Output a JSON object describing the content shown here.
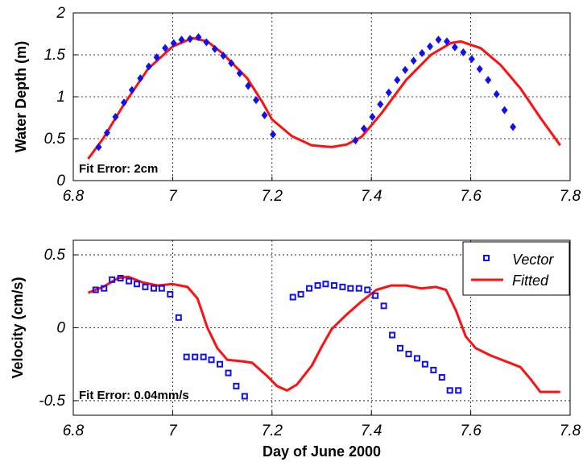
{
  "colors": {
    "marker": "#1010ee",
    "fit": "#ff1010"
  },
  "chart_data": [
    {
      "type": "scatter",
      "ylabel": "Water Depth (m)",
      "xlim": [
        6.8,
        7.8
      ],
      "ylim": [
        0,
        2
      ],
      "xticks": [
        "6.8",
        "7",
        "7.2",
        "7.4",
        "7.6",
        "7.8"
      ],
      "yticks": [
        "0",
        "0.5",
        "1",
        "1.5",
        "2"
      ],
      "grid": true,
      "annotation": "Fit Error: 2cm",
      "series": [
        {
          "marker": "diamond",
          "color": "#1010ee",
          "points": [
            [
              6.851,
              0.4
            ],
            [
              6.868,
              0.57
            ],
            [
              6.885,
              0.76
            ],
            [
              6.902,
              0.93
            ],
            [
              6.918,
              1.08
            ],
            [
              6.935,
              1.22
            ],
            [
              6.952,
              1.36
            ],
            [
              6.968,
              1.47
            ],
            [
              6.985,
              1.58
            ],
            [
              7.002,
              1.64
            ],
            [
              7.018,
              1.68
            ],
            [
              7.035,
              1.69
            ],
            [
              7.052,
              1.71
            ],
            [
              7.068,
              1.65
            ],
            [
              7.085,
              1.57
            ],
            [
              7.102,
              1.49
            ],
            [
              7.118,
              1.4
            ],
            [
              7.135,
              1.28
            ],
            [
              7.152,
              1.13
            ],
            [
              7.168,
              0.96
            ],
            [
              7.185,
              0.78
            ],
            [
              7.202,
              0.55
            ],
            [
              7.368,
              0.48
            ],
            [
              7.385,
              0.62
            ],
            [
              7.402,
              0.76
            ],
            [
              7.418,
              0.91
            ],
            [
              7.435,
              1.05
            ],
            [
              7.452,
              1.2
            ],
            [
              7.468,
              1.32
            ],
            [
              7.485,
              1.43
            ],
            [
              7.502,
              1.52
            ],
            [
              7.518,
              1.6
            ],
            [
              7.535,
              1.68
            ],
            [
              7.552,
              1.66
            ],
            [
              7.568,
              1.59
            ],
            [
              7.585,
              1.53
            ],
            [
              7.602,
              1.45
            ],
            [
              7.618,
              1.33
            ],
            [
              7.635,
              1.2
            ],
            [
              7.652,
              1.03
            ],
            [
              7.668,
              0.84
            ],
            [
              7.685,
              0.64
            ]
          ]
        },
        {
          "color": "#ff1010",
          "points": [
            [
              6.83,
              0.26
            ],
            [
              6.86,
              0.5
            ],
            [
              6.9,
              0.89
            ],
            [
              6.95,
              1.33
            ],
            [
              7.0,
              1.6
            ],
            [
              7.04,
              1.7
            ],
            [
              7.07,
              1.66
            ],
            [
              7.1,
              1.52
            ],
            [
              7.15,
              1.22
            ],
            [
              7.18,
              0.94
            ],
            [
              7.2,
              0.73
            ],
            [
              7.24,
              0.53
            ],
            [
              7.28,
              0.42
            ],
            [
              7.32,
              0.4
            ],
            [
              7.35,
              0.43
            ],
            [
              7.38,
              0.52
            ],
            [
              7.42,
              0.8
            ],
            [
              7.47,
              1.2
            ],
            [
              7.52,
              1.5
            ],
            [
              7.56,
              1.64
            ],
            [
              7.58,
              1.66
            ],
            [
              7.62,
              1.58
            ],
            [
              7.66,
              1.38
            ],
            [
              7.7,
              1.1
            ],
            [
              7.74,
              0.75
            ],
            [
              7.78,
              0.42
            ]
          ]
        }
      ]
    },
    {
      "type": "scatter",
      "ylabel": "Velocity (cm/s)",
      "xlabel": "Day of June 2000",
      "xlim": [
        6.8,
        7.8
      ],
      "ylim": [
        -0.6,
        0.6
      ],
      "xticks": [
        "6.8",
        "7",
        "7.2",
        "7.4",
        "7.6",
        "7.8"
      ],
      "yticks": [
        "-0.5",
        "0",
        "0.5"
      ],
      "grid": true,
      "annotation": "Fit Error: 0.04mm/s",
      "legend_position": "top-right",
      "series": [
        {
          "name": "Vector",
          "marker": "square",
          "color": "#1010ee",
          "points": [
            [
              6.845,
              0.26
            ],
            [
              6.862,
              0.27
            ],
            [
              6.878,
              0.33
            ],
            [
              6.895,
              0.34
            ],
            [
              6.912,
              0.32
            ],
            [
              6.928,
              0.3
            ],
            [
              6.945,
              0.28
            ],
            [
              6.962,
              0.27
            ],
            [
              6.978,
              0.27
            ],
            [
              6.995,
              0.23
            ],
            [
              7.012,
              0.07
            ],
            [
              7.028,
              -0.2
            ],
            [
              7.045,
              -0.2
            ],
            [
              7.062,
              -0.2
            ],
            [
              7.078,
              -0.22
            ],
            [
              7.095,
              -0.25
            ],
            [
              7.112,
              -0.31
            ],
            [
              7.128,
              -0.4
            ],
            [
              7.145,
              -0.47
            ],
            [
              7.242,
              0.21
            ],
            [
              7.258,
              0.23
            ],
            [
              7.275,
              0.27
            ],
            [
              7.292,
              0.29
            ],
            [
              7.308,
              0.3
            ],
            [
              7.325,
              0.29
            ],
            [
              7.342,
              0.28
            ],
            [
              7.358,
              0.27
            ],
            [
              7.375,
              0.27
            ],
            [
              7.392,
              0.26
            ],
            [
              7.408,
              0.22
            ],
            [
              7.425,
              0.15
            ],
            [
              7.442,
              -0.05
            ],
            [
              7.458,
              -0.14
            ],
            [
              7.475,
              -0.18
            ],
            [
              7.492,
              -0.21
            ],
            [
              7.508,
              -0.25
            ],
            [
              7.525,
              -0.29
            ],
            [
              7.542,
              -0.34
            ],
            [
              7.558,
              -0.43
            ],
            [
              7.575,
              -0.43
            ]
          ]
        },
        {
          "name": "Fitted",
          "color": "#ff1010",
          "points": [
            [
              6.83,
              0.24
            ],
            [
              6.86,
              0.28
            ],
            [
              6.89,
              0.34
            ],
            [
              6.91,
              0.35
            ],
            [
              6.94,
              0.31
            ],
            [
              6.97,
              0.29
            ],
            [
              7.0,
              0.3
            ],
            [
              7.03,
              0.28
            ],
            [
              7.05,
              0.2
            ],
            [
              7.07,
              0.0
            ],
            [
              7.09,
              -0.14
            ],
            [
              7.11,
              -0.22
            ],
            [
              7.14,
              -0.23
            ],
            [
              7.16,
              -0.24
            ],
            [
              7.19,
              -0.33
            ],
            [
              7.21,
              -0.4
            ],
            [
              7.23,
              -0.43
            ],
            [
              7.25,
              -0.39
            ],
            [
              7.28,
              -0.26
            ],
            [
              7.3,
              -0.13
            ],
            [
              7.32,
              -0.01
            ],
            [
              7.35,
              0.09
            ],
            [
              7.38,
              0.18
            ],
            [
              7.41,
              0.26
            ],
            [
              7.44,
              0.29
            ],
            [
              7.47,
              0.29
            ],
            [
              7.5,
              0.27
            ],
            [
              7.53,
              0.28
            ],
            [
              7.55,
              0.26
            ],
            [
              7.57,
              0.12
            ],
            [
              7.59,
              -0.06
            ],
            [
              7.61,
              -0.14
            ],
            [
              7.64,
              -0.19
            ],
            [
              7.67,
              -0.23
            ],
            [
              7.7,
              -0.27
            ],
            [
              7.72,
              -0.35
            ],
            [
              7.74,
              -0.44
            ],
            [
              7.76,
              -0.44
            ],
            [
              7.78,
              -0.44
            ]
          ]
        }
      ]
    }
  ]
}
